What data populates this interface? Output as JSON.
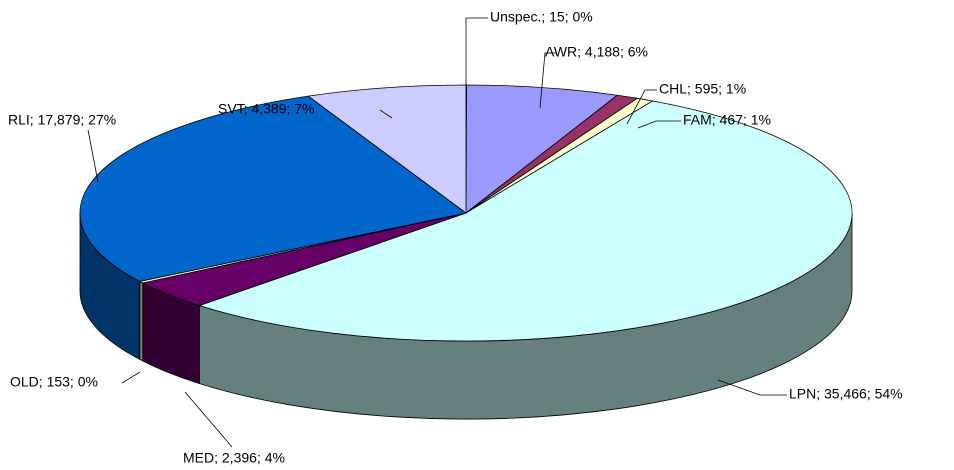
{
  "chart_data": {
    "type": "pie3d",
    "labels": [
      "Unspec.; 15; 0%",
      "AWR; 4,188; 6%",
      "CHL; 595; 1%",
      "FAM; 467; 1%",
      "LPN; 35,466; 54%",
      "MED; 2,396; 4%",
      "OLD; 153; 0%",
      "RLI; 17,879; 27%",
      "SVT; 4,389; 7%"
    ],
    "values": [
      15,
      4188,
      595,
      467,
      35466,
      2396,
      153,
      17879,
      4389
    ],
    "colors": [
      "#333399",
      "#9999ff",
      "#993366",
      "#ffffcc",
      "#ccffff",
      "#660066",
      "#ffffcc",
      "#0066cc",
      "#ccccff"
    ]
  }
}
